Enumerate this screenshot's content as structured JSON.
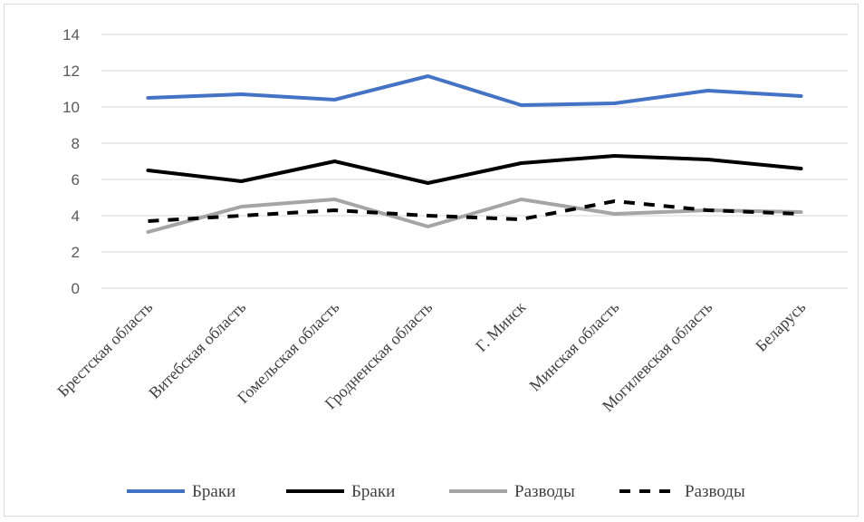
{
  "chart_data": {
    "type": "line",
    "categories": [
      "Брестская область",
      "Витебская область",
      "Гомельская область",
      "Гродненская область",
      "Г. Минск",
      "Минская область",
      "Могилевская область",
      "Беларусь"
    ],
    "series": [
      {
        "name": "Браки",
        "color": "#4472c4",
        "dash": "solid",
        "values": [
          10.5,
          10.7,
          10.4,
          11.7,
          10.1,
          10.2,
          10.9,
          10.6
        ]
      },
      {
        "name": "Браки",
        "color": "#000000",
        "dash": "solid",
        "values": [
          6.5,
          5.9,
          7.0,
          5.8,
          6.9,
          7.3,
          7.1,
          6.6
        ]
      },
      {
        "name": "Разводы",
        "color": "#a5a5a5",
        "dash": "solid",
        "values": [
          3.1,
          4.5,
          4.9,
          3.4,
          4.9,
          4.1,
          4.3,
          4.2
        ]
      },
      {
        "name": "Разводы",
        "color": "#000000",
        "dash": "dashed",
        "values": [
          3.7,
          4.0,
          4.3,
          4.0,
          3.8,
          4.8,
          4.3,
          4.1
        ]
      }
    ],
    "ylim": [
      0,
      14
    ],
    "yticks": [
      0,
      2,
      4,
      6,
      8,
      10,
      12,
      14
    ],
    "grid": true,
    "legend_position": "bottom",
    "title": "",
    "xlabel": "",
    "ylabel": ""
  }
}
